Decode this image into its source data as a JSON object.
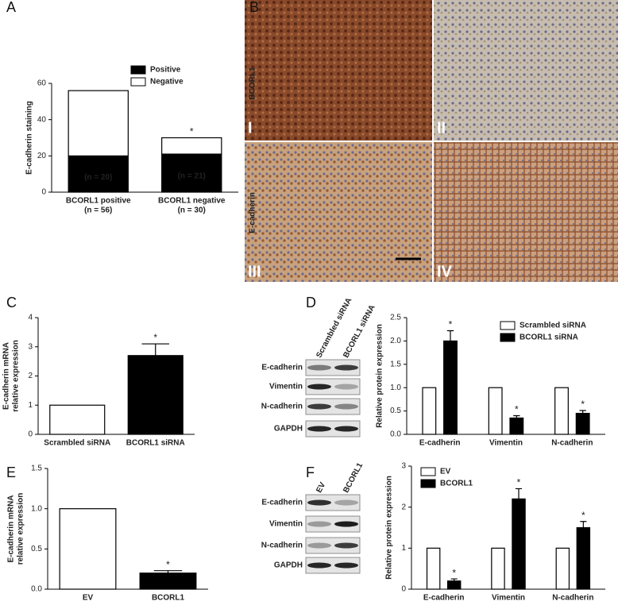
{
  "panel_labels": [
    "A",
    "B",
    "C",
    "D",
    "E",
    "F"
  ],
  "histology": {
    "row_labels": [
      "BCORL1",
      "E-cadherin"
    ],
    "numerals": [
      "I",
      "II",
      "III",
      "IV"
    ]
  },
  "blots": [
    {
      "lanes": [
        "Scrambled siRNA",
        "BCORL1 siRNA"
      ],
      "rows": [
        "E-cadherin",
        "Vimentin",
        "N-cadherin",
        "GAPDH"
      ]
    },
    {
      "lanes": [
        "EV",
        "BCORL1"
      ],
      "rows": [
        "E-cadherin",
        "Vimentin",
        "N-cadherin",
        "GAPDH"
      ]
    }
  ],
  "chart_data": [
    {
      "type": "bar",
      "stacked": true,
      "ylabel": [
        "E-cadherin staining"
      ],
      "categories": [
        "BCORL1 positive",
        "BCORL1 negative"
      ],
      "category_notes": [
        "(n = 56)",
        "(n = 30)"
      ],
      "series": [
        {
          "name": "Positive",
          "color": "#000000",
          "values": [
            20,
            21
          ],
          "value_labels": [
            "(n = 20)",
            "(n = 21)"
          ]
        },
        {
          "name": "Negative",
          "color": "#ffffff",
          "values": [
            36,
            9
          ],
          "significance": [
            null,
            "*"
          ]
        }
      ],
      "ylim": [
        0,
        60
      ],
      "yticks": [
        0,
        20,
        40,
        60
      ],
      "legend": "upper right"
    },
    {
      "type": "bar",
      "ylabel": [
        "E-cadherin mRNA",
        "relative expression"
      ],
      "categories": [
        "Scrambled siRNA",
        "BCORL1 siRNA"
      ],
      "values": [
        1,
        2.7
      ],
      "errors": [
        0,
        0.4
      ],
      "colors": [
        "#ffffff",
        "#000000"
      ],
      "significance": [
        null,
        "*"
      ],
      "ylim": [
        0,
        4
      ],
      "yticks": [
        0,
        1,
        2,
        3,
        4
      ]
    },
    {
      "type": "bar",
      "ylabel": [
        "Relative protein expression"
      ],
      "categories": [
        "E-cadherin",
        "Vimentin",
        "N-cadherin"
      ],
      "series": [
        {
          "name": "Scrambled siRNA",
          "color": "#ffffff",
          "values": [
            1,
            1,
            1
          ]
        },
        {
          "name": "BCORL1 siRNA",
          "color": "#000000",
          "values": [
            2.0,
            0.35,
            0.45
          ],
          "errors": [
            0.22,
            0.05,
            0.06
          ],
          "significance": [
            "*",
            "*",
            "*"
          ]
        }
      ],
      "ylim": [
        0,
        2.5
      ],
      "yticks": [
        {
          "value": 0,
          "label": "0.0"
        },
        0.5,
        {
          "value": 1,
          "label": "1.0"
        },
        1.5,
        {
          "value": 2,
          "label": "2.0"
        },
        2.5
      ],
      "legend": "upper right"
    },
    {
      "type": "bar",
      "ylabel": [
        "E-cadherin mRNA",
        "relative expression"
      ],
      "categories": [
        "EV",
        "BCORL1"
      ],
      "values": [
        1.0,
        0.2
      ],
      "errors": [
        0,
        0.03
      ],
      "colors": [
        "#ffffff",
        "#000000"
      ],
      "significance": [
        null,
        "*"
      ],
      "ylim": [
        0,
        1.5
      ],
      "yticks": [
        {
          "value": 0,
          "label": "0.0"
        },
        0.5,
        {
          "value": 1,
          "label": "1.0"
        },
        1.5
      ]
    },
    {
      "type": "bar",
      "ylabel": [
        "Relative protein expression"
      ],
      "categories": [
        "E-cadherin",
        "Vimentin",
        "N-cadherin"
      ],
      "series": [
        {
          "name": "EV",
          "color": "#ffffff",
          "values": [
            1,
            1,
            1
          ]
        },
        {
          "name": "BCORL1",
          "color": "#000000",
          "values": [
            0.2,
            2.2,
            1.5
          ],
          "errors": [
            0.05,
            0.25,
            0.15
          ],
          "significance": [
            "*",
            "*",
            "*"
          ]
        }
      ],
      "ylim": [
        0,
        3
      ],
      "yticks": [
        0,
        1,
        2,
        3
      ],
      "legend": "upper left"
    }
  ]
}
